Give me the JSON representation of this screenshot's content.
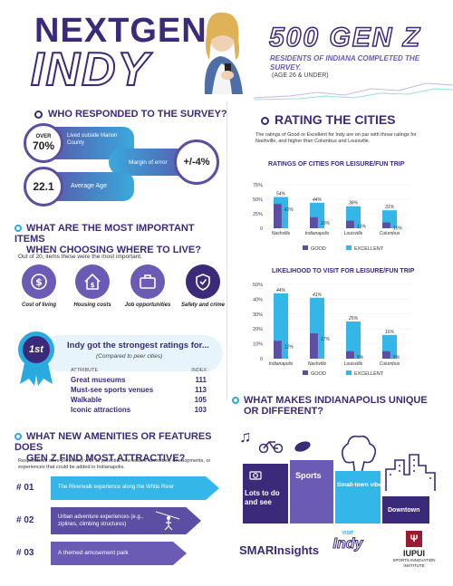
{
  "header": {
    "logo_line1": "NEXTGEN",
    "logo_line2": "INDY",
    "headline": "500 GEN Z",
    "subtitle": "RESIDENTS OF INDIANA COMPLETED THE SURVEY.",
    "age_note": "(AGE 26 & UNDER)"
  },
  "respondents": {
    "title": "WHO RESPONDED TO THE SURVEY?",
    "over_label": "OVER",
    "over_value": "70%",
    "over_desc": "Lived outside Marion County",
    "margin_label": "Margin of error",
    "margin_value": "+/-4%",
    "age_value": "22.1",
    "age_label": "Average Age"
  },
  "important": {
    "title_line1": "WHAT ARE THE MOST IMPORTANT ITEMS",
    "title_line2": "WHEN CHOOSING WHERE TO LIVE?",
    "intro": "Out of 20, items these were the most important.",
    "items": [
      {
        "label": "Cost of living",
        "icon": "money-icon"
      },
      {
        "label": "Housing costs",
        "icon": "house-icon"
      },
      {
        "label": "Job opportunities",
        "icon": "briefcase-icon"
      },
      {
        "label": "Safety and crime",
        "icon": "shield-check-icon"
      }
    ]
  },
  "ratings": {
    "badge": "1st",
    "headline": "Indy got the strongest ratings for...",
    "sub": "(Compared to peer cities)",
    "col_attribute": "ATTRIBUTE",
    "col_index": "INDEX",
    "rows": [
      {
        "attribute": "Great museums",
        "index": "111"
      },
      {
        "attribute": "Must-see sports venues",
        "index": "113"
      },
      {
        "attribute": "Walkable",
        "index": "105"
      },
      {
        "attribute": "Iconic attractions",
        "index": "103"
      }
    ]
  },
  "amenities": {
    "title_line1": "WHAT NEW AMENITIES OR FEATURES DOES",
    "title_line2": "GEN Z FIND MOST ATTRACTIVE?",
    "intro": "Respondents were presented with 11 potential new leisure amenities, developments, or experiences that could be added in Indianapolis.",
    "items": [
      {
        "rank": "# 01",
        "text": "The Riverwalk experience along the White River"
      },
      {
        "rank": "# 02",
        "text": "Urban adventure experiences (e.g., ziplines, climbing structures)"
      },
      {
        "rank": "# 03",
        "text": "A themed amusement park"
      }
    ]
  },
  "cities": {
    "title": "RATING THE CITIES",
    "intro": "The ratings of Good or Excellent for Indy are on par with those ratings for Nashville, and higher than Columbus and Louisville."
  },
  "chart_data": [
    {
      "type": "bar",
      "title": "RATINGS OF CITIES FOR LEISURE/FUN TRIP",
      "categories": [
        "Nashville",
        "Indianapolis",
        "Louisville",
        "Columbus"
      ],
      "series": [
        {
          "name": "GOOD",
          "values": [
            42,
            19,
            13,
            10
          ]
        },
        {
          "name": "EXCELLENT",
          "values": [
            54,
            44,
            38,
            31
          ]
        }
      ],
      "tick_labels": [
        "75%",
        "50%",
        "25%",
        "0"
      ],
      "ylim": [
        0,
        75
      ],
      "legend": "bottom"
    },
    {
      "type": "bar",
      "title": "LIKELIHOOD TO VISIT FOR LEISURE/FUN TRIP",
      "categories": [
        "Indianapolis",
        "Nashville",
        "Louisville",
        "Columbus"
      ],
      "series": [
        {
          "name": "GOOD",
          "values": [
            12,
            17,
            5,
            5
          ]
        },
        {
          "name": "EXCELLENT",
          "values": [
            44,
            41,
            25,
            16
          ]
        }
      ],
      "tick_labels": [
        "50%",
        "40%",
        "30%",
        "20%",
        "10%",
        "0"
      ],
      "ylim": [
        0,
        50
      ],
      "legend": "bottom"
    }
  ],
  "unique": {
    "title_line1": "WHAT MAKES INDIANAPOLIS UNIQUE",
    "title_line2": "OR DIFFERENT?",
    "blocks": [
      "Lots to do and see",
      "Sports",
      "Small-town vibe",
      "Downtown"
    ]
  },
  "footer": {
    "smari": "SMARInsights",
    "visit": "VISIT",
    "indy": "Indy",
    "iupui": "IUPUI",
    "iupui_sub": "SPORTS INNOVATION INSTITUTE"
  },
  "colors": {
    "purple": "#3b2a7a",
    "blue": "#29abe2",
    "good": "#5b4ea3",
    "excellent": "#35b6e9"
  }
}
